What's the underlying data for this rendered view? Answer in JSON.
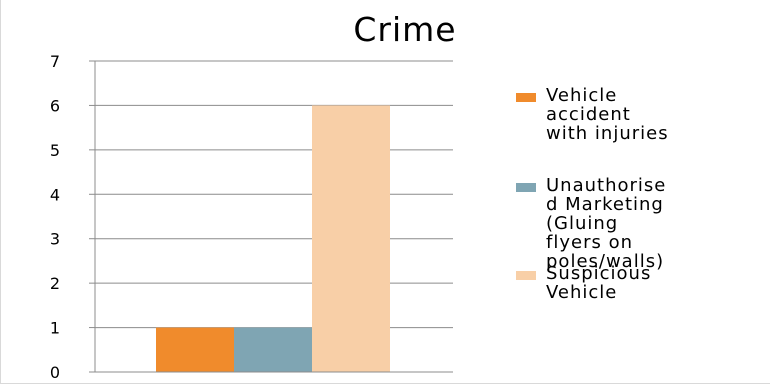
{
  "chart_data": {
    "type": "bar",
    "title": "Crime",
    "categories": [
      ""
    ],
    "series": [
      {
        "name": "Vehicle\naccident\nwith injuries",
        "values": [
          1
        ],
        "color": "#f08b2c"
      },
      {
        "name": "Unauthorise\nd Marketing\n(Gluing\nflyers on\npoles/walls)",
        "values": [
          1
        ],
        "color": "#7fa5b3"
      },
      {
        "name": "Suspicious\nVehicle",
        "values": [
          6
        ],
        "color": "#f8cfa7"
      }
    ],
    "ylim": [
      0,
      7
    ],
    "yticks": [
      "0",
      "1",
      "2",
      "3",
      "4",
      "5",
      "6",
      "7"
    ],
    "grid": true,
    "legend_position": "right",
    "xlabel": "",
    "ylabel": ""
  }
}
